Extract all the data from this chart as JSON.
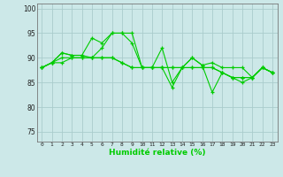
{
  "xlabel": "Humidité relative (%)",
  "xlim": [
    -0.5,
    23.5
  ],
  "ylim": [
    73,
    101
  ],
  "yticks": [
    75,
    80,
    85,
    90,
    95,
    100
  ],
  "xticks": [
    0,
    1,
    2,
    3,
    4,
    5,
    6,
    7,
    8,
    9,
    10,
    11,
    12,
    13,
    14,
    15,
    16,
    17,
    18,
    19,
    20,
    21,
    22,
    23
  ],
  "background_color": "#cce8e8",
  "grid_color": "#aacccc",
  "line_color": "#00cc00",
  "lines": [
    [
      88,
      89,
      91,
      90.5,
      90.5,
      90,
      92,
      95,
      95,
      93,
      88,
      88,
      92,
      85,
      88,
      90,
      88.5,
      89,
      88,
      88,
      88,
      86,
      88,
      87
    ],
    [
      88,
      89,
      91,
      90.5,
      90.5,
      94,
      93,
      95,
      95,
      95,
      88,
      88,
      88,
      84,
      88,
      90,
      88.5,
      83,
      87,
      86,
      85,
      86,
      88,
      87
    ],
    [
      88,
      89,
      90,
      90,
      90,
      90,
      90,
      90,
      89,
      88,
      88,
      88,
      88,
      88,
      88,
      88,
      88,
      88,
      87,
      86,
      86,
      86,
      88,
      87
    ],
    [
      88,
      89,
      89,
      90,
      90,
      90,
      90,
      90,
      89,
      88,
      88,
      88,
      88,
      88,
      88,
      88,
      88,
      88,
      87,
      86,
      86,
      86,
      88,
      87
    ]
  ]
}
